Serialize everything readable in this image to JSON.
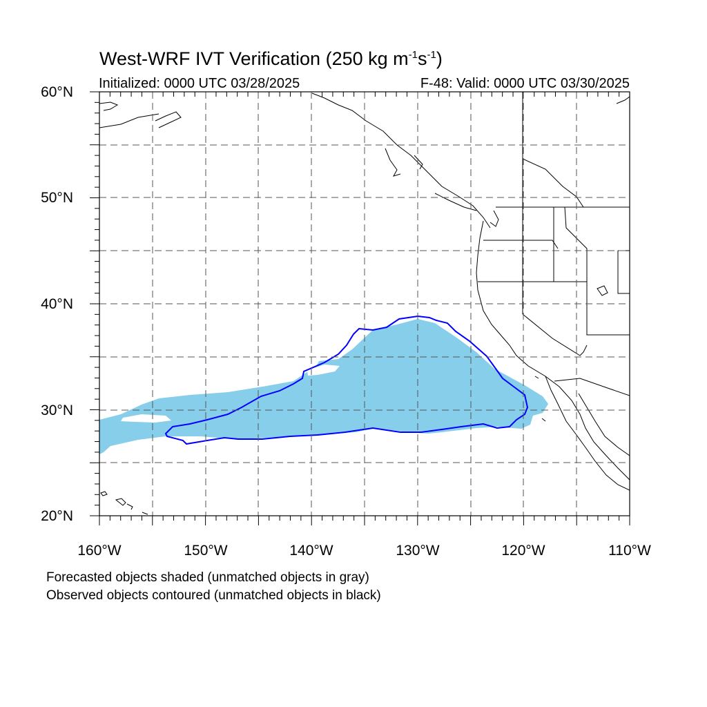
{
  "title": {
    "prefix": "West-WRF IVT Verification (250 kg m",
    "exp1": "-1",
    "mid": "s",
    "exp2": "-1",
    "suffix": ")"
  },
  "initialized": "Initialized: 0000 UTC 03/28/2025",
  "valid": "F-48: Valid: 0000 UTC 03/30/2025",
  "map": {
    "lon_range": [
      -160,
      -110
    ],
    "lat_range": [
      20,
      60
    ],
    "gridlines": "dashed every 5 degrees",
    "y_tick_labels": [
      "60°N",
      "50°N",
      "40°N",
      "30°N",
      "20°N"
    ],
    "x_tick_labels": [
      "160°W",
      "150°W",
      "140°W",
      "130°W",
      "120°W",
      "110°W"
    ],
    "colors": {
      "forecast_fill": "#87ceeb",
      "observed_contour": "#0000ff",
      "coastline": "#000000",
      "grid": "#555555"
    }
  },
  "notes": {
    "line1": "Forecasted objects shaded (unmatched objects in gray)",
    "line2": "Observed objects contoured (unmatched objects in black)"
  }
}
